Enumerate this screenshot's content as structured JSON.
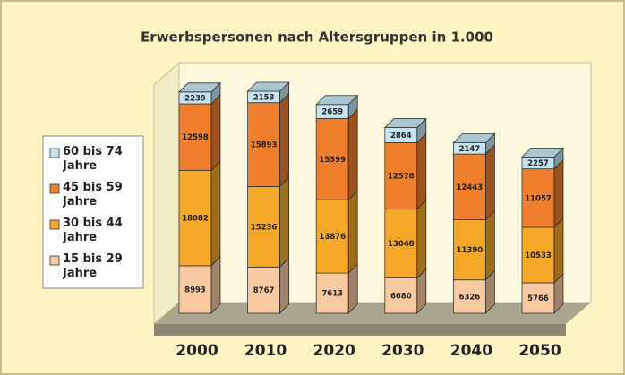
{
  "chart_data": {
    "type": "stacked-bar-3d",
    "title": "Erwerbspersonen nach Altersgruppen in 1.000",
    "categories": [
      "2000",
      "2010",
      "2020",
      "2030",
      "2040",
      "2050"
    ],
    "series": [
      {
        "name": "15 bis 29 Jahre",
        "color": "#f9caa2",
        "values": [
          8993,
          8767,
          7613,
          6680,
          6326,
          5766
        ]
      },
      {
        "name": "30 bis 44 Jahre",
        "color": "#f5a828",
        "values": [
          18082,
          15236,
          13876,
          13048,
          11390,
          10533
        ]
      },
      {
        "name": "45 bis 59 Jahre",
        "color": "#ef7f2c",
        "values": [
          12598,
          15893,
          15399,
          12578,
          12443,
          11057
        ]
      },
      {
        "name": "60 bis 74 Jahre",
        "color": "#c3e4f0",
        "values": [
          2239,
          2153,
          2659,
          2864,
          2147,
          2257
        ]
      }
    ],
    "legend": "left"
  }
}
